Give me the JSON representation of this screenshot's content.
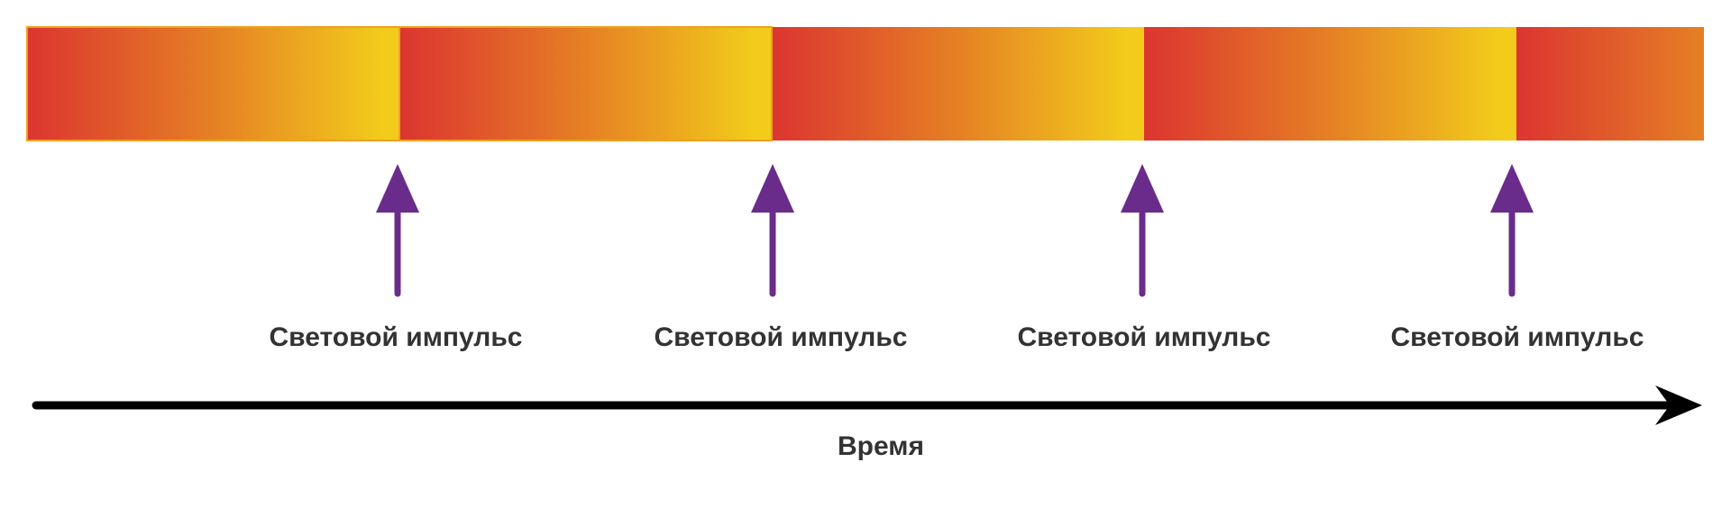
{
  "diagram": {
    "colors": {
      "gradient_start": "#DC3530",
      "gradient_mid": "#E58024",
      "gradient_end": "#F2CB1B",
      "segment_border": "#F0A020",
      "pulse_arrow": "#6A2C8A",
      "time_axis": "#000000",
      "label_text": "#333333"
    },
    "cycles": [
      {
        "label": "Световой импульс"
      },
      {
        "label": "Световой импульс"
      },
      {
        "label": "Световой импульс"
      },
      {
        "label": "Световой импульс"
      }
    ],
    "time_axis": {
      "label": "Время"
    }
  }
}
